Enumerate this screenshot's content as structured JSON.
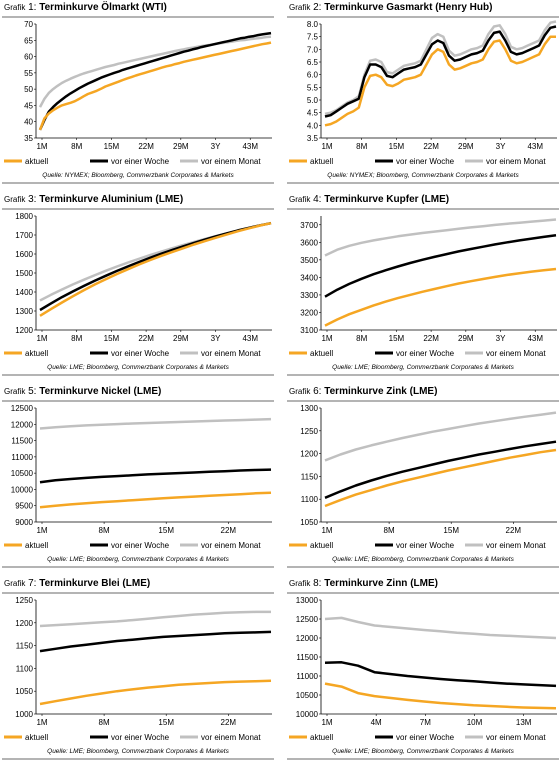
{
  "legend_labels": [
    "aktuell",
    "vor einer Woche",
    "vor einem Monat"
  ],
  "colors": {
    "aktuell": "#f5a623",
    "woche": "#000000",
    "monat": "#c0c0c0",
    "rule": "#b4b4b4"
  },
  "chart_data": [
    {
      "type": "line",
      "prefix": "Grafik",
      "number": "1:",
      "title": "Terminkurve Ölmarkt (WTI)",
      "source": "Quelle: NYMEX; Bloomberg, Commerzbank Corporates & Markets",
      "xticks": [
        "1M",
        "8M",
        "15M",
        "22M",
        "29M",
        "3Y",
        "43M"
      ],
      "yticks": [
        "35",
        "40",
        "45",
        "50",
        "55",
        "60",
        "65",
        "70"
      ],
      "ylim": [
        35,
        70
      ],
      "series": [
        {
          "name": "aktuell",
          "values": [
            37.5,
            41,
            42.5,
            43.5,
            44.3,
            45,
            45.4,
            45.8,
            46.3,
            47,
            47.8,
            48.5,
            49,
            49.5,
            50.1,
            50.8,
            51.3,
            51.8,
            52.3,
            52.8,
            53.3,
            53.7,
            54.2,
            54.6,
            55,
            55.4,
            55.8,
            56.2,
            56.6,
            57,
            57.3,
            57.7,
            58,
            58.4,
            58.7,
            59,
            59.3,
            59.6,
            59.9,
            60.2,
            60.5,
            60.8,
            61.1,
            61.4,
            61.7,
            62,
            62.3,
            62.6,
            62.9,
            63.2,
            63.5,
            63.8,
            64,
            64.3
          ]
        },
        {
          "name": "vor einer Woche",
          "values": [
            37.5,
            40.5,
            43,
            44.5,
            45.7,
            46.8,
            47.8,
            48.7,
            49.5,
            50.3,
            51,
            51.7,
            52.3,
            52.9,
            53.5,
            54,
            54.5,
            55,
            55.4,
            55.9,
            56.3,
            56.7,
            57.1,
            57.5,
            57.9,
            58.3,
            58.7,
            59.1,
            59.5,
            59.9,
            60.3,
            60.7,
            61.1,
            61.5,
            61.8,
            62.2,
            62.5,
            62.9,
            63.2,
            63.5,
            63.8,
            64.1,
            64.4,
            64.7,
            65,
            65.3,
            65.6,
            65.8,
            66.1,
            66.3,
            66.6,
            66.8,
            67,
            67.2
          ]
        },
        {
          "name": "vor einem Monat",
          "values": [
            44.5,
            47,
            48.8,
            50,
            51,
            51.9,
            52.6,
            53.2,
            53.8,
            54.3,
            54.8,
            55.2,
            55.6,
            56,
            56.4,
            56.8,
            57.1,
            57.4,
            57.8,
            58.1,
            58.4,
            58.7,
            59,
            59.3,
            59.6,
            59.9,
            60.2,
            60.5,
            60.8,
            61.1,
            61.4,
            61.7,
            62,
            62.2,
            62.5,
            62.7,
            63,
            63.2,
            63.4,
            63.6,
            63.8,
            64,
            64.2,
            64.4,
            64.6,
            64.8,
            65,
            65.1,
            65.3,
            65.5,
            65.6,
            65.8,
            66,
            66.1
          ]
        }
      ]
    },
    {
      "type": "line",
      "prefix": "Grafik",
      "number": "2:",
      "title": "Terminkurve Gasmarkt (Henry Hub)",
      "source": "Quelle: NYMEX; Bloomberg, Commerzbank Corporates & Markets",
      "xticks": [
        "1M",
        "8M",
        "15M",
        "22M",
        "29M",
        "3Y",
        "43M"
      ],
      "yticks": [
        "3.5",
        "4.0",
        "4.5",
        "5.0",
        "5.5",
        "6.0",
        "6.5",
        "7.0",
        "7.5",
        "8.0"
      ],
      "ylim": [
        3.5,
        8.0
      ],
      "series": [
        {
          "name": "aktuell",
          "values": [
            4.0,
            4.05,
            4.15,
            4.3,
            4.45,
            4.55,
            4.7,
            5.5,
            5.95,
            6.0,
            5.9,
            5.6,
            5.55,
            5.65,
            5.8,
            5.85,
            5.9,
            6.0,
            6.4,
            6.8,
            7.0,
            6.9,
            6.4,
            6.2,
            6.25,
            6.35,
            6.45,
            6.5,
            6.6,
            7.0,
            7.3,
            7.35,
            7.0,
            6.55,
            6.45,
            6.5,
            6.6,
            6.7,
            6.8,
            7.2,
            7.5,
            7.5
          ]
        },
        {
          "name": "vor einer Woche",
          "values": [
            4.35,
            4.4,
            4.55,
            4.7,
            4.85,
            4.95,
            5.05,
            5.9,
            6.4,
            6.4,
            6.3,
            5.95,
            5.9,
            6.05,
            6.2,
            6.25,
            6.3,
            6.4,
            6.8,
            7.2,
            7.35,
            7.25,
            6.75,
            6.55,
            6.6,
            6.7,
            6.8,
            6.85,
            6.95,
            7.35,
            7.65,
            7.7,
            7.35,
            6.9,
            6.8,
            6.85,
            6.95,
            7.05,
            7.15,
            7.55,
            7.85,
            7.9
          ]
        },
        {
          "name": "vor einem Monat",
          "values": [
            4.45,
            4.5,
            4.6,
            4.75,
            4.9,
            5.0,
            5.15,
            6.0,
            6.55,
            6.6,
            6.5,
            6.1,
            6.05,
            6.2,
            6.35,
            6.4,
            6.45,
            6.55,
            7.0,
            7.45,
            7.6,
            7.5,
            6.95,
            6.75,
            6.8,
            6.9,
            7.0,
            7.05,
            7.15,
            7.6,
            7.9,
            7.95,
            7.6,
            7.1,
            7.0,
            7.05,
            7.15,
            7.25,
            7.35,
            7.75,
            8.05,
            8.1
          ]
        }
      ]
    },
    {
      "type": "line",
      "prefix": "Grafik",
      "number": "3:",
      "title": "Terminkurve Aluminium (LME)",
      "source": "Quelle: LME; Bloomberg, Commerzbank Corporates & Markets",
      "xticks": [
        "1M",
        "8M",
        "15M",
        "22M",
        "29M",
        "3Y",
        "43M"
      ],
      "yticks": [
        "1200",
        "1300",
        "1400",
        "1500",
        "1600",
        "1700",
        "1800"
      ],
      "ylim": [
        1200,
        1800
      ],
      "series": [
        {
          "name": "aktuell",
          "values": [
            1275,
            1310,
            1345,
            1378,
            1410,
            1440,
            1468,
            1495,
            1520,
            1545,
            1568,
            1590,
            1610,
            1630,
            1650,
            1668,
            1686,
            1703,
            1720,
            1735,
            1750,
            1762
          ]
        },
        {
          "name": "vor einer Woche",
          "values": [
            1305,
            1340,
            1373,
            1403,
            1432,
            1460,
            1486,
            1511,
            1535,
            1558,
            1580,
            1601,
            1621,
            1640,
            1658,
            1676,
            1693,
            1709,
            1724,
            1738,
            1751,
            1762
          ]
        },
        {
          "name": "vor einem Monat",
          "values": [
            1355,
            1385,
            1413,
            1440,
            1465,
            1489,
            1512,
            1534,
            1555,
            1575,
            1594,
            1612,
            1630,
            1647,
            1663,
            1679,
            1694,
            1709,
            1723,
            1737,
            1750,
            1763
          ]
        }
      ]
    },
    {
      "type": "line",
      "prefix": "Grafik",
      "number": "4:",
      "title": "Terminkurve Kupfer (LME)",
      "source": "Quelle: LME; Bloomberg, Commerzbank Corporates & Markets",
      "xticks": [
        "1M",
        "8M",
        "15M",
        "22M",
        "29M",
        "3Y",
        "43M"
      ],
      "yticks": [
        "3100",
        "3200",
        "3300",
        "3400",
        "3500",
        "3600",
        "3700"
      ],
      "ylim": [
        3100,
        3750
      ],
      "series": [
        {
          "name": "aktuell",
          "values": [
            3125,
            3160,
            3190,
            3215,
            3240,
            3262,
            3282,
            3300,
            3318,
            3334,
            3350,
            3365,
            3378,
            3391,
            3403,
            3414,
            3424,
            3433,
            3441,
            3448
          ]
        },
        {
          "name": "vor einer Woche",
          "values": [
            3290,
            3330,
            3363,
            3392,
            3418,
            3441,
            3462,
            3482,
            3500,
            3517,
            3533,
            3548,
            3562,
            3575,
            3588,
            3600,
            3611,
            3621,
            3631,
            3640
          ]
        },
        {
          "name": "vor einem Monat",
          "values": [
            3525,
            3558,
            3580,
            3597,
            3611,
            3623,
            3634,
            3644,
            3653,
            3661,
            3669,
            3677,
            3685,
            3692,
            3699,
            3706,
            3712,
            3718,
            3724,
            3730
          ]
        }
      ]
    },
    {
      "type": "line",
      "prefix": "Grafik",
      "number": "5:",
      "title": "Terminkurve Nickel (LME)",
      "source": "Quelle: LME; Bloomberg, Commerzbank Corporates & Markets",
      "xticks": [
        "1M",
        "8M",
        "15M",
        "22M"
      ],
      "yticks": [
        "9000",
        "9500",
        "10000",
        "10500",
        "11000",
        "11500",
        "12000",
        "12500"
      ],
      "ylim": [
        9000,
        12500
      ],
      "series": [
        {
          "name": "aktuell",
          "values": [
            9450,
            9500,
            9540,
            9575,
            9610,
            9640,
            9670,
            9700,
            9730,
            9755,
            9780,
            9805,
            9830,
            9855,
            9880,
            9900
          ]
        },
        {
          "name": "vor einer Woche",
          "values": [
            10220,
            10280,
            10320,
            10355,
            10385,
            10410,
            10435,
            10460,
            10480,
            10500,
            10520,
            10540,
            10560,
            10580,
            10595,
            10610
          ]
        },
        {
          "name": "vor einem Monat",
          "values": [
            11870,
            11910,
            11940,
            11965,
            11985,
            12005,
            12025,
            12040,
            12055,
            12070,
            12085,
            12100,
            12115,
            12130,
            12145,
            12160
          ]
        }
      ]
    },
    {
      "type": "line",
      "prefix": "Grafik",
      "number": "6:",
      "title": "Terminkurve Zink (LME)",
      "source": "Quelle: LME; Bloomberg, Commerzbank Corporates & Markets",
      "xticks": [
        "1M",
        "8M",
        "15M",
        "22M"
      ],
      "yticks": [
        "1050",
        "1100",
        "1150",
        "1200",
        "1250",
        "1300"
      ],
      "ylim": [
        1050,
        1300
      ],
      "series": [
        {
          "name": "aktuell",
          "values": [
            1085,
            1098,
            1110,
            1120,
            1130,
            1139,
            1147,
            1155,
            1163,
            1170,
            1177,
            1184,
            1191,
            1197,
            1203,
            1208
          ]
        },
        {
          "name": "vor einer Woche",
          "values": [
            1103,
            1117,
            1130,
            1141,
            1151,
            1160,
            1168,
            1176,
            1184,
            1191,
            1198,
            1204,
            1210,
            1216,
            1221,
            1226
          ]
        },
        {
          "name": "vor einem Monat",
          "values": [
            1185,
            1198,
            1209,
            1218,
            1226,
            1234,
            1241,
            1248,
            1254,
            1260,
            1266,
            1271,
            1276,
            1281,
            1285,
            1290
          ]
        }
      ]
    },
    {
      "type": "line",
      "prefix": "Grafik",
      "number": "7:",
      "title": "Terminkurve Blei (LME)",
      "source": "Quelle: LME; Bloomberg, Commerzbank Corporates & Markets",
      "xticks": [
        "1M",
        "8M",
        "15M",
        "22M"
      ],
      "yticks": [
        "1000",
        "1050",
        "1100",
        "1150",
        "1200",
        "1250"
      ],
      "ylim": [
        1000,
        1250
      ],
      "series": [
        {
          "name": "aktuell",
          "values": [
            1022,
            1028,
            1034,
            1040,
            1045,
            1050,
            1054,
            1058,
            1061,
            1064,
            1066,
            1068,
            1070,
            1071,
            1072,
            1073
          ]
        },
        {
          "name": "vor einer Woche",
          "values": [
            1138,
            1143,
            1148,
            1152,
            1156,
            1160,
            1163,
            1166,
            1169,
            1171,
            1173,
            1175,
            1177,
            1178,
            1179,
            1180
          ]
        },
        {
          "name": "vor einem Monat",
          "values": [
            1193,
            1195,
            1197,
            1199,
            1201,
            1203,
            1206,
            1209,
            1212,
            1215,
            1218,
            1220,
            1222,
            1223,
            1224,
            1224
          ]
        }
      ]
    },
    {
      "type": "line",
      "prefix": "Grafik",
      "number": "8:",
      "title": "Terminkurve Zinn (LME)",
      "source": "Quelle: LME; Bloomberg, Commerzbank Corporates & Markets",
      "xticks": [
        "1M",
        "4M",
        "7M",
        "10M",
        "13M"
      ],
      "yticks": [
        "10000",
        "10500",
        "11000",
        "11500",
        "12000",
        "12500",
        "13000"
      ],
      "ylim": [
        10000,
        13000
      ],
      "series": [
        {
          "name": "aktuell",
          "values": [
            10800,
            10720,
            10550,
            10470,
            10420,
            10370,
            10330,
            10290,
            10260,
            10230,
            10210,
            10190,
            10170,
            10160,
            10150
          ]
        },
        {
          "name": "vor einer Woche",
          "values": [
            11350,
            11360,
            11270,
            11100,
            11050,
            11000,
            10960,
            10920,
            10890,
            10860,
            10830,
            10800,
            10780,
            10760,
            10740
          ]
        },
        {
          "name": "vor einem Monat",
          "values": [
            12500,
            12530,
            12420,
            12330,
            12290,
            12250,
            12210,
            12180,
            12140,
            12110,
            12080,
            12060,
            12040,
            12020,
            12000
          ]
        }
      ]
    }
  ]
}
